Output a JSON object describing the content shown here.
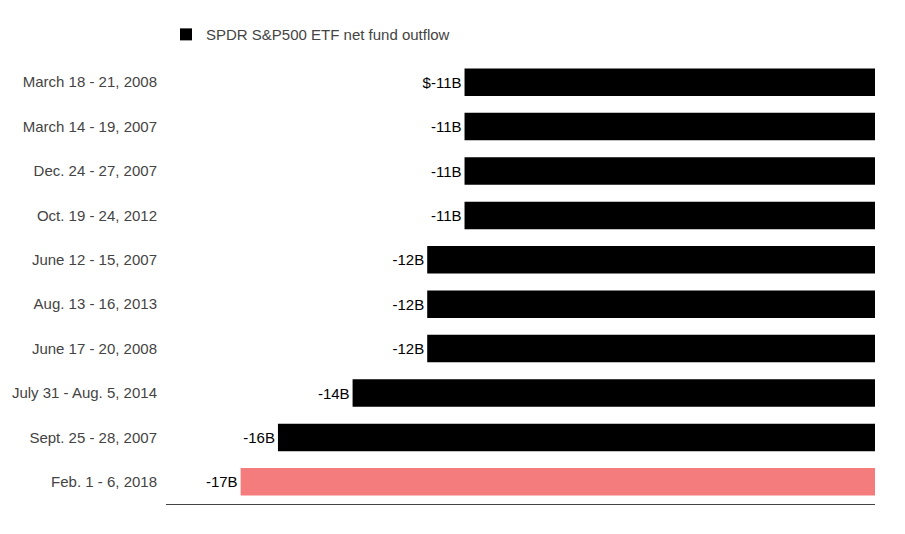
{
  "chart_data": {
    "type": "bar",
    "orientation": "horizontal",
    "categories": [
      "March 18 - 21, 2008",
      "March 14 - 19, 2007",
      "Dec. 24 - 27, 2007",
      "Oct. 19 - 24, 2012",
      "June 12 - 15, 2007",
      "Aug. 13 - 16, 2013",
      "June 17 - 20, 2008",
      "July 31 - Aug. 5, 2014",
      "Sept. 25 - 28, 2007",
      "Feb. 1 - 6, 2018"
    ],
    "series": [
      {
        "name": "SPDR S&P500 ETF net fund outflow",
        "color": "#000000",
        "colors": [
          "#000000",
          "#000000",
          "#000000",
          "#000000",
          "#000000",
          "#000000",
          "#000000",
          "#000000",
          "#000000",
          "#f47c7c"
        ],
        "values": [
          -11,
          -11,
          -11,
          -11,
          -12,
          -12,
          -12,
          -14,
          -16,
          -17
        ],
        "value_labels": [
          "$-11B",
          "-11B",
          "-11B",
          "-11B",
          "-12B",
          "-12B",
          "-12B",
          "-14B",
          "-16B",
          "-17B"
        ]
      }
    ],
    "xlim": [
      -19,
      0
    ],
    "data_labels": true,
    "tick_labels": "y",
    "grid": false,
    "legend": "upper left"
  }
}
